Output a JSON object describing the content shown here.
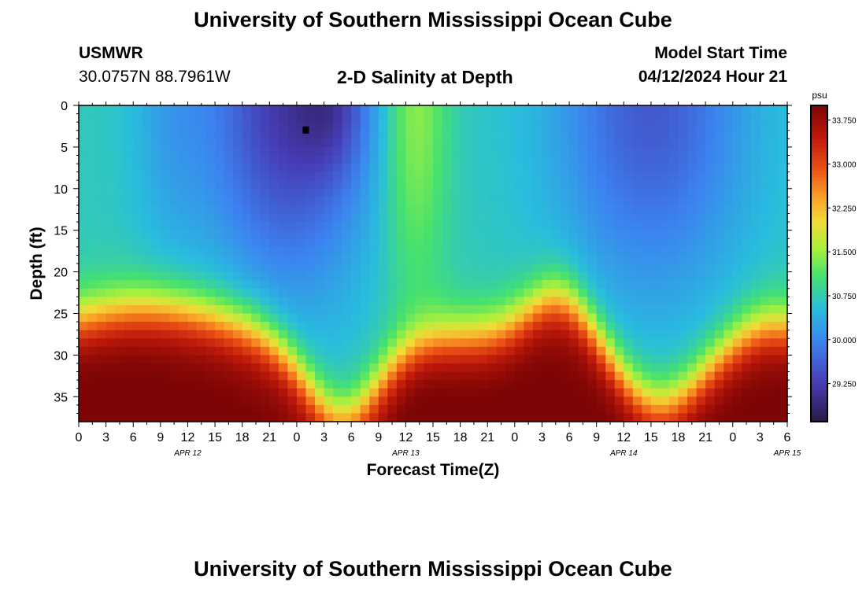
{
  "header": {
    "title": "University of Southern Mississippi Ocean Cube",
    "station": "USMWR",
    "coords": "30.0757N  88.7961W",
    "plot_title": "2-D Salinity at Depth",
    "model_label": "Model Start Time",
    "model_time": "04/12/2024 Hour 21"
  },
  "footer": {
    "title": "University of Southern Mississippi Ocean Cube"
  },
  "chart_data": {
    "type": "heatmap",
    "title": "2-D Salinity at Depth",
    "xlabel": "Forecast Time(Z)",
    "ylabel": "Depth (ft)",
    "x_tick_labels": [
      "0",
      "3",
      "6",
      "9",
      "12",
      "15",
      "18",
      "21",
      "0",
      "3",
      "6",
      "9",
      "12",
      "15",
      "18",
      "21",
      "0",
      "3",
      "6",
      "9",
      "12",
      "15",
      "18",
      "21",
      "0",
      "3",
      "6"
    ],
    "date_labels": [
      {
        "label": "APR 12",
        "hour": 12
      },
      {
        "label": "APR 13",
        "hour": 36
      },
      {
        "label": "APR 14",
        "hour": 60
      },
      {
        "label": "APR 15",
        "hour": 78
      }
    ],
    "xlim_hours": [
      0,
      78
    ],
    "ylim": [
      38,
      0
    ],
    "y_ticks": [
      0,
      5,
      10,
      15,
      20,
      25,
      30,
      35
    ],
    "colorbar": {
      "unit": "psu",
      "range": [
        28.6,
        34.0
      ],
      "ticks": [
        "33.750",
        "33.000",
        "32.250",
        "31.500",
        "30.750",
        "30.000",
        "29.250"
      ],
      "tick_values": [
        33.75,
        33.0,
        32.25,
        31.5,
        30.75,
        30.0,
        29.25
      ]
    },
    "marker": {
      "hour": 25,
      "depth": 3
    }
  }
}
